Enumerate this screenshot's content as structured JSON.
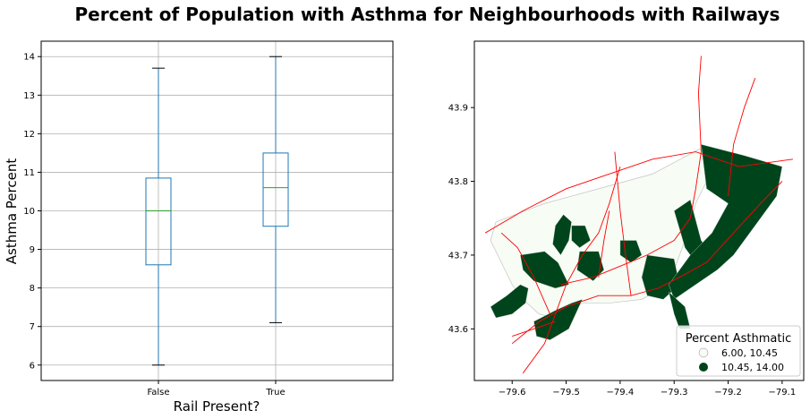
{
  "figure": {
    "title": "Percent of Population with Asthma for Neighbourhoods with Railways"
  },
  "chart_data": [
    {
      "type": "box",
      "categories": [
        "False",
        "True"
      ],
      "boxes": [
        {
          "category": "False",
          "min": 6.0,
          "q1": 8.6,
          "median": 10.0,
          "q3": 10.85,
          "max": 13.7
        },
        {
          "category": "True",
          "min": 7.1,
          "q1": 9.6,
          "median": 10.6,
          "q3": 11.5,
          "max": 14.0
        }
      ],
      "xlabel": "Rail Present?",
      "ylabel": "Asthma Percent",
      "ylim": [
        5.6,
        14.4
      ],
      "yticks": [
        6,
        7,
        8,
        9,
        10,
        11,
        12,
        13,
        14
      ],
      "grid": true,
      "colors": {
        "box": "#1f77b4",
        "median": "#2ca02c",
        "whisker": "#1f77b4",
        "cap": "#000000",
        "grid": "#b0b0b0"
      }
    },
    {
      "type": "map",
      "xlim": [
        -79.67,
        -79.06
      ],
      "ylim": [
        43.53,
        43.99
      ],
      "xticks": [
        -79.6,
        -79.5,
        -79.4,
        -79.3,
        -79.2,
        -79.1
      ],
      "xtick_labels": [
        "−79.6",
        "−79.5",
        "−79.4",
        "−79.3",
        "−79.2",
        "−79.1"
      ],
      "yticks": [
        43.6,
        43.7,
        43.8,
        43.9
      ],
      "ytick_labels": [
        "43.6",
        "43.7",
        "43.8",
        "43.9"
      ],
      "legend": {
        "title": "Percent Asthmatic",
        "placement": "lower-right",
        "entries": [
          {
            "label": "6.00, 10.45",
            "color": "#f7fcf5"
          },
          {
            "label": "10.45, 14.00",
            "color": "#00441b"
          }
        ]
      },
      "regions_high": [
        [
          [
            -79.64,
            43.63
          ],
          [
            -79.61,
            43.645
          ],
          [
            -79.585,
            43.66
          ],
          [
            -79.57,
            43.655
          ],
          [
            -79.575,
            43.635
          ],
          [
            -79.6,
            43.62
          ],
          [
            -79.63,
            43.615
          ]
        ],
        [
          [
            -79.585,
            43.7
          ],
          [
            -79.54,
            43.705
          ],
          [
            -79.515,
            43.69
          ],
          [
            -79.495,
            43.66
          ],
          [
            -79.52,
            43.655
          ],
          [
            -79.56,
            43.665
          ],
          [
            -79.58,
            43.68
          ]
        ],
        [
          [
            -79.52,
            43.74
          ],
          [
            -79.505,
            43.755
          ],
          [
            -79.49,
            43.745
          ],
          [
            -79.495,
            43.72
          ],
          [
            -79.51,
            43.7
          ],
          [
            -79.525,
            43.715
          ]
        ],
        [
          [
            -79.49,
            43.74
          ],
          [
            -79.465,
            43.74
          ],
          [
            -79.455,
            43.72
          ],
          [
            -79.475,
            43.71
          ],
          [
            -79.49,
            43.72
          ]
        ],
        [
          [
            -79.475,
            43.705
          ],
          [
            -79.44,
            43.705
          ],
          [
            -79.43,
            43.68
          ],
          [
            -79.45,
            43.665
          ],
          [
            -79.48,
            43.68
          ]
        ],
        [
          [
            -79.56,
            43.61
          ],
          [
            -79.52,
            43.625
          ],
          [
            -79.49,
            43.635
          ],
          [
            -79.47,
            43.64
          ],
          [
            -79.495,
            43.6
          ],
          [
            -79.53,
            43.585
          ],
          [
            -79.555,
            43.59
          ]
        ],
        [
          [
            -79.4,
            43.72
          ],
          [
            -79.37,
            43.72
          ],
          [
            -79.36,
            43.7
          ],
          [
            -79.38,
            43.69
          ],
          [
            -79.4,
            43.7
          ]
        ],
        [
          [
            -79.35,
            43.7
          ],
          [
            -79.3,
            43.695
          ],
          [
            -79.29,
            43.66
          ],
          [
            -79.32,
            43.64
          ],
          [
            -79.35,
            43.645
          ],
          [
            -79.36,
            43.67
          ]
        ],
        [
          [
            -79.3,
            43.76
          ],
          [
            -79.27,
            43.775
          ],
          [
            -79.25,
            43.72
          ],
          [
            -79.23,
            43.7
          ],
          [
            -79.26,
            43.69
          ],
          [
            -79.28,
            43.71
          ]
        ],
        [
          [
            -79.25,
            43.85
          ],
          [
            -79.17,
            43.835
          ],
          [
            -79.1,
            43.82
          ],
          [
            -79.11,
            43.78
          ],
          [
            -79.15,
            43.74
          ],
          [
            -79.19,
            43.7
          ],
          [
            -79.22,
            43.68
          ],
          [
            -79.26,
            43.66
          ],
          [
            -79.3,
            43.64
          ],
          [
            -79.31,
            43.66
          ],
          [
            -79.27,
            43.7
          ],
          [
            -79.23,
            43.73
          ],
          [
            -79.2,
            43.77
          ],
          [
            -79.24,
            43.79
          ]
        ],
        [
          [
            -79.31,
            43.65
          ],
          [
            -79.28,
            43.63
          ],
          [
            -79.27,
            43.6
          ],
          [
            -79.29,
            43.6
          ],
          [
            -79.3,
            43.62
          ]
        ]
      ],
      "regions_low": [
        [
          [
            -79.63,
            43.745
          ],
          [
            -79.54,
            43.77
          ],
          [
            -79.44,
            43.79
          ],
          [
            -79.34,
            43.81
          ],
          [
            -79.25,
            43.845
          ],
          [
            -79.24,
            43.8
          ],
          [
            -79.26,
            43.77
          ],
          [
            -79.28,
            43.72
          ],
          [
            -79.31,
            43.66
          ],
          [
            -79.36,
            43.64
          ],
          [
            -79.42,
            43.635
          ],
          [
            -79.47,
            43.635
          ],
          [
            -79.52,
            43.615
          ],
          [
            -79.55,
            43.62
          ],
          [
            -79.58,
            43.64
          ],
          [
            -79.6,
            43.66
          ],
          [
            -79.62,
            43.69
          ],
          [
            -79.64,
            43.72
          ]
        ]
      ],
      "rail_lines": [
        [
          [
            -79.65,
            43.73
          ],
          [
            -79.58,
            43.76
          ],
          [
            -79.5,
            43.79
          ],
          [
            -79.42,
            43.81
          ],
          [
            -79.34,
            43.83
          ],
          [
            -79.26,
            43.84
          ],
          [
            -79.18,
            43.82
          ],
          [
            -79.08,
            43.83
          ]
        ],
        [
          [
            -79.6,
            43.58
          ],
          [
            -79.55,
            43.61
          ],
          [
            -79.5,
            43.63
          ],
          [
            -79.44,
            43.645
          ],
          [
            -79.38,
            43.645
          ],
          [
            -79.33,
            43.655
          ],
          [
            -79.29,
            43.67
          ],
          [
            -79.24,
            43.69
          ],
          [
            -79.19,
            43.73
          ],
          [
            -79.14,
            43.77
          ],
          [
            -79.1,
            43.8
          ]
        ],
        [
          [
            -79.58,
            43.54
          ],
          [
            -79.54,
            43.58
          ],
          [
            -79.52,
            43.62
          ],
          [
            -79.5,
            43.66
          ],
          [
            -79.47,
            43.7
          ],
          [
            -79.44,
            43.73
          ],
          [
            -79.42,
            43.77
          ],
          [
            -79.4,
            43.82
          ]
        ],
        [
          [
            -79.51,
            43.66
          ],
          [
            -79.45,
            43.67
          ],
          [
            -79.4,
            43.685
          ],
          [
            -79.35,
            43.7
          ],
          [
            -79.3,
            43.72
          ],
          [
            -79.27,
            43.75
          ],
          [
            -79.26,
            43.79
          ],
          [
            -79.25,
            43.84
          ],
          [
            -79.255,
            43.92
          ],
          [
            -79.25,
            43.97
          ]
        ],
        [
          [
            -79.2,
            43.78
          ],
          [
            -79.19,
            43.85
          ],
          [
            -79.17,
            43.9
          ],
          [
            -79.15,
            43.94
          ]
        ],
        [
          [
            -79.38,
            43.645
          ],
          [
            -79.39,
            43.7
          ],
          [
            -79.4,
            43.76
          ],
          [
            -79.41,
            43.84
          ]
        ],
        [
          [
            -79.53,
            43.62
          ],
          [
            -79.56,
            43.67
          ],
          [
            -79.59,
            43.71
          ],
          [
            -79.62,
            43.73
          ]
        ],
        [
          [
            -79.44,
            43.67
          ],
          [
            -79.43,
            43.72
          ],
          [
            -79.42,
            43.76
          ]
        ],
        [
          [
            -79.6,
            43.59
          ],
          [
            -79.56,
            43.6
          ],
          [
            -79.52,
            43.61
          ]
        ]
      ]
    }
  ]
}
